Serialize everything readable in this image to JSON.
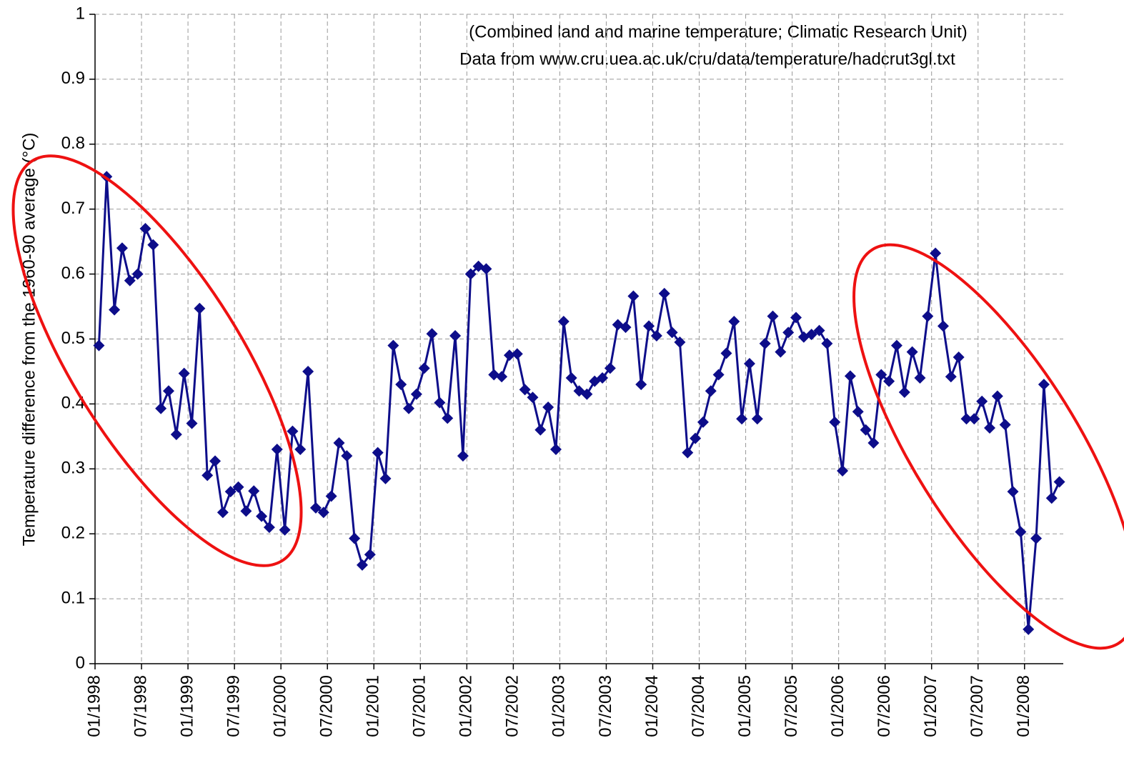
{
  "chart_data": {
    "type": "line",
    "annotations": [
      "(Combined land and marine temperature; Climatic Research Unit)",
      "Data from www.cru.uea.ac.uk/cru/data/temperature/hadcrut3gl.txt"
    ],
    "y_label": "Temperature difference from the 1960-90 average (°C)",
    "categories": [
      "01/1998",
      null,
      null,
      null,
      null,
      null,
      "07/1998",
      null,
      null,
      null,
      null,
      null,
      "01/1999",
      null,
      null,
      null,
      null,
      null,
      "07/1999",
      null,
      null,
      null,
      null,
      null,
      "01/2000",
      null,
      null,
      null,
      null,
      null,
      "07/2000",
      null,
      null,
      null,
      null,
      null,
      "01/2001",
      null,
      null,
      null,
      null,
      null,
      "07/2001",
      null,
      null,
      null,
      null,
      null,
      "01/2002",
      null,
      null,
      null,
      null,
      null,
      "07/2002",
      null,
      null,
      null,
      null,
      null,
      "01/2003",
      null,
      null,
      null,
      null,
      null,
      "07/2003",
      null,
      null,
      null,
      null,
      null,
      "01/2004",
      null,
      null,
      null,
      null,
      null,
      "07/2004",
      null,
      null,
      null,
      null,
      null,
      "01/2005",
      null,
      null,
      null,
      null,
      null,
      "07/2005",
      null,
      null,
      null,
      null,
      null,
      "01/2006",
      null,
      null,
      null,
      null,
      null,
      "07/2006",
      null,
      null,
      null,
      null,
      null,
      "01/2007",
      null,
      null,
      null,
      null,
      null,
      "07/2007",
      null,
      null,
      null,
      null,
      null,
      "01/2008",
      null,
      null,
      null,
      null
    ],
    "values": [
      0.49,
      0.75,
      0.545,
      0.64,
      0.59,
      0.6,
      0.67,
      0.645,
      0.393,
      0.42,
      0.353,
      0.447,
      0.37,
      0.547,
      0.29,
      0.312,
      0.233,
      0.265,
      0.272,
      0.235,
      0.266,
      0.227,
      0.21,
      0.33,
      0.206,
      0.358,
      0.33,
      0.45,
      0.24,
      0.233,
      0.258,
      0.34,
      0.32,
      0.193,
      0.152,
      0.168,
      0.325,
      0.285,
      0.49,
      0.43,
      0.393,
      0.415,
      0.455,
      0.508,
      0.402,
      0.378,
      0.505,
      0.32,
      0.6,
      0.612,
      0.608,
      0.445,
      0.442,
      0.475,
      0.477,
      0.422,
      0.41,
      0.36,
      0.395,
      0.33,
      0.527,
      0.44,
      0.42,
      0.415,
      0.435,
      0.44,
      0.455,
      0.522,
      0.518,
      0.566,
      0.43,
      0.52,
      0.505,
      0.57,
      0.51,
      0.495,
      0.325,
      0.347,
      0.372,
      0.42,
      0.445,
      0.478,
      0.527,
      0.377,
      0.462,
      0.377,
      0.493,
      0.535,
      0.48,
      0.51,
      0.533,
      0.503,
      0.507,
      0.513,
      0.493,
      0.372,
      0.297,
      0.443,
      0.388,
      0.36,
      0.34,
      0.445,
      0.435,
      0.49,
      0.418,
      0.48,
      0.44,
      0.535,
      0.632,
      0.52,
      0.442,
      0.472,
      0.377,
      0.377,
      0.404,
      0.363,
      0.412,
      0.368,
      0.265,
      0.203,
      0.053,
      0.193,
      0.43,
      0.255,
      0.28
    ],
    "color": "#0d0d8a",
    "ylim": [
      0,
      1
    ],
    "yticks": [
      0,
      0.1,
      0.2,
      0.3,
      0.4,
      0.5,
      0.6,
      0.7,
      0.8,
      0.9,
      1
    ],
    "grid": true
  }
}
